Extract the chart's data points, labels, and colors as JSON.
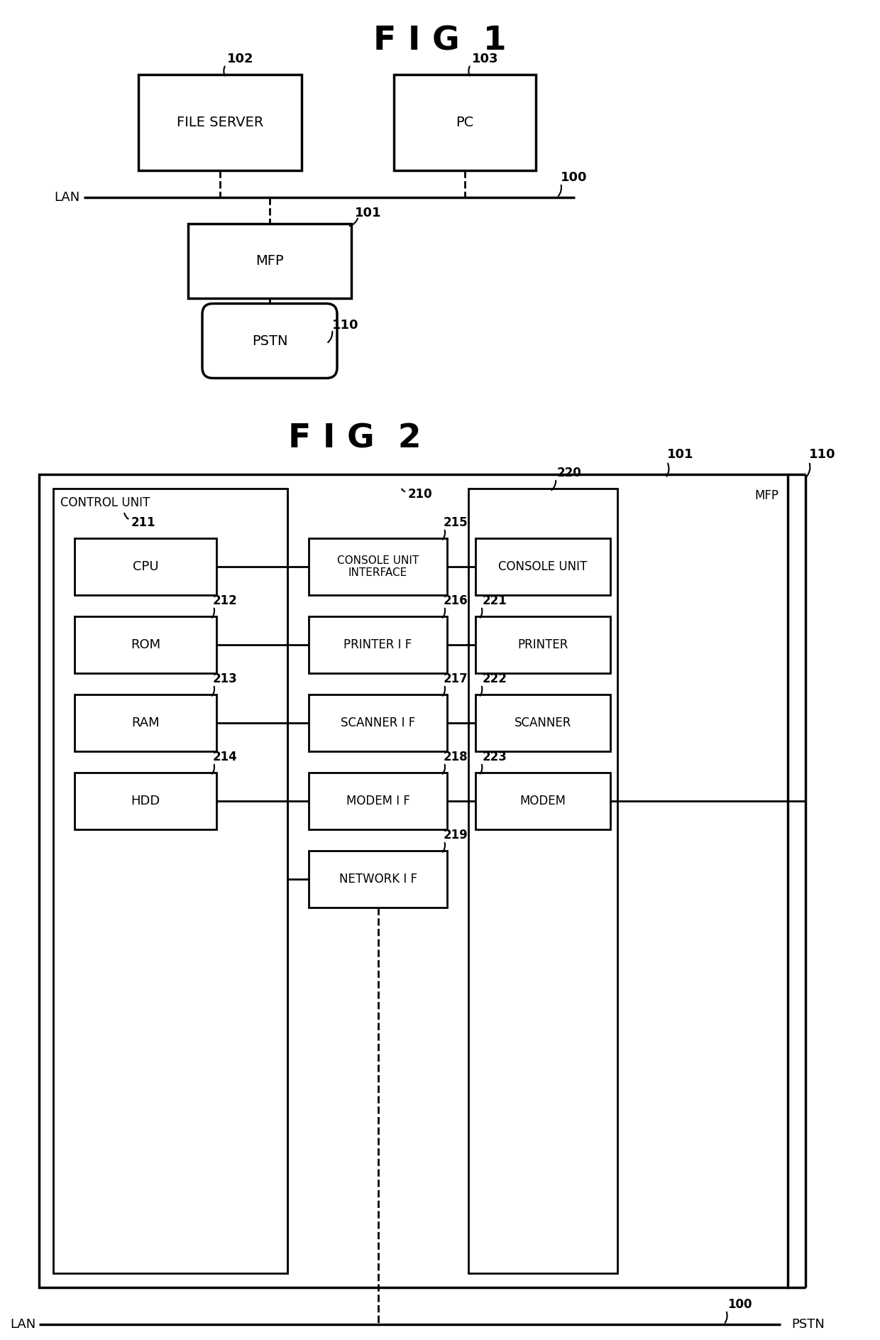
{
  "fig_title1": "F I G  1",
  "fig_title2": "F I G  2",
  "bg_color": "#ffffff",
  "text_color": "#000000",
  "fig1": {
    "file_server_label": "FILE SERVER",
    "file_server_ref": "102",
    "pc_label": "PC",
    "pc_ref": "103",
    "lan_label": "LAN",
    "lan_ref": "100",
    "mfp_label": "MFP",
    "mfp_ref": "101",
    "pstn_label": "PSTN",
    "pstn_ref": "110"
  },
  "fig2": {
    "outer_ref": "101",
    "outer_label": "MFP",
    "brace_ref": "110",
    "control_unit_label": "CONTROL UNIT",
    "control_unit_ref": "211",
    "io_bus_ref": "210",
    "console_section_ref": "220",
    "cpu_label": "CPU",
    "rom_label": "ROM",
    "rom_ref": "212",
    "ram_label": "RAM",
    "ram_ref": "213",
    "hdd_label": "HDD",
    "hdd_ref": "214",
    "console_if_label": "CONSOLE UNIT\nINTERFACE",
    "console_if_ref": "215",
    "printer_if_label": "PRINTER I F",
    "printer_if_ref": "216",
    "scanner_if_label": "SCANNER I F",
    "scanner_if_ref": "217",
    "modem_if_label": "MODEM I F",
    "modem_if_ref": "218",
    "network_if_label": "NETWORK I F",
    "network_if_ref": "219",
    "console_unit_label": "CONSOLE UNIT",
    "console_unit_ref": "220",
    "printer_label": "PRINTER",
    "printer_ref": "221",
    "scanner_label": "SCANNER",
    "scanner_ref": "222",
    "modem_label": "MODEM",
    "modem_ref": "223",
    "lan_label": "LAN",
    "lan_ref": "100",
    "pstn_label": "PSTN"
  }
}
